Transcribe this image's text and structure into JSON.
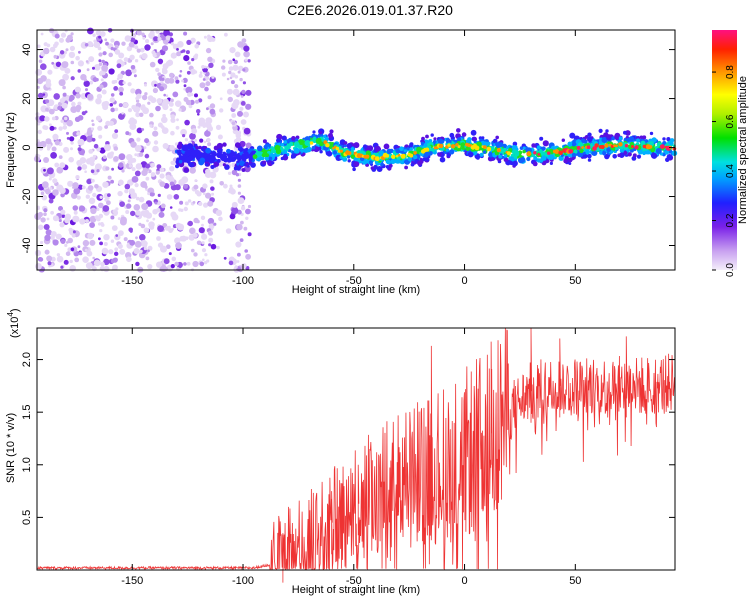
{
  "title": "C2E6.2026.019.01.37.R20",
  "spectrogram": {
    "type": "heatmap",
    "xlabel": "Height of straight line (km)",
    "ylabel": "Frequency (Hz)",
    "xlim": [
      -193,
      95
    ],
    "ylim": [
      -50,
      48
    ],
    "xticks": [
      -150,
      -100,
      -50,
      0,
      50
    ],
    "yticks": [
      -40,
      -20,
      0,
      20,
      40
    ],
    "colorbar": {
      "label": "Normalized spectral amplitude",
      "range": [
        0,
        0.97
      ],
      "ticks": [
        0.0,
        0.2,
        0.4,
        0.6,
        0.8
      ],
      "tick_labels": [
        "0.0",
        "0.2",
        "0.4",
        "0.6",
        "0.8"
      ]
    },
    "trend": [
      {
        "x": -130,
        "y": -3
      },
      {
        "x": -100,
        "y": -4
      },
      {
        "x": -80,
        "y": 0
      },
      {
        "x": -65,
        "y": 3
      },
      {
        "x": -55,
        "y": -2
      },
      {
        "x": -40,
        "y": -4
      },
      {
        "x": -25,
        "y": -3
      },
      {
        "x": -15,
        "y": 0
      },
      {
        "x": 0,
        "y": 1
      },
      {
        "x": 15,
        "y": -1
      },
      {
        "x": 25,
        "y": -3
      },
      {
        "x": 40,
        "y": -2
      },
      {
        "x": 55,
        "y": 0
      },
      {
        "x": 70,
        "y": 1
      },
      {
        "x": 95,
        "y": 0
      }
    ],
    "noise_region_x": [
      -193,
      -97
    ]
  },
  "snr": {
    "type": "line",
    "xlabel": "Height of straight line (km)",
    "ylabel": "SNR (10 * v/v)",
    "scale_label": "(x10",
    "scale_exp": "4",
    "scale_close": ")",
    "xlim": [
      -193,
      95
    ],
    "ylim": [
      0,
      2.3
    ],
    "xticks": [
      -150,
      -100,
      -50,
      0,
      50
    ],
    "yticks": [
      0.5,
      1.0,
      1.5,
      2.0
    ],
    "ytick_labels": [
      "0.5",
      "1.0",
      "1.5",
      "2.0"
    ],
    "color": "#ee3333",
    "envelope": [
      {
        "x": -193,
        "y": 0.02
      },
      {
        "x": -95,
        "y": 0.02
      },
      {
        "x": -88,
        "y": 0.05
      },
      {
        "x": -82,
        "y": 0.18
      },
      {
        "x": -70,
        "y": 0.3
      },
      {
        "x": -60,
        "y": 0.45
      },
      {
        "x": -50,
        "y": 0.6
      },
      {
        "x": -40,
        "y": 0.75
      },
      {
        "x": -30,
        "y": 0.85
      },
      {
        "x": -20,
        "y": 0.95
      },
      {
        "x": -10,
        "y": 1.0
      },
      {
        "x": 0,
        "y": 1.1
      },
      {
        "x": 10,
        "y": 1.25
      },
      {
        "x": 20,
        "y": 1.5
      },
      {
        "x": 30,
        "y": 1.7
      },
      {
        "x": 40,
        "y": 1.75
      },
      {
        "x": 60,
        "y": 1.75
      },
      {
        "x": 80,
        "y": 1.75
      },
      {
        "x": 95,
        "y": 1.78
      }
    ],
    "spikes": [
      {
        "x": -82,
        "y": 0.35
      },
      {
        "x": -60,
        "y": 0.75
      },
      {
        "x": -48,
        "y": 1.0
      },
      {
        "x": -30,
        "y": 1.25
      },
      {
        "x": -15,
        "y": 2.13
      },
      {
        "x": 12,
        "y": 2.17
      },
      {
        "x": 30,
        "y": 2.3
      },
      {
        "x": 43,
        "y": 2.2
      },
      {
        "x": 73,
        "y": 2.22
      }
    ]
  }
}
